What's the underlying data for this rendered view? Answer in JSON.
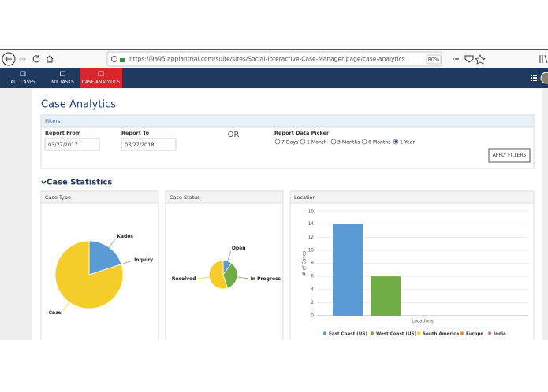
{
  "browser": {
    "url": "https://9a95.appiantrial.com/suite/sites/Social-Interactive-Case-Manager/page/case-analytics",
    "zoom": "80%"
  },
  "nav": {
    "tabs": [
      "ALL CASES",
      "MY TASKS",
      "CASE ANALYTICS"
    ],
    "active": 2
  },
  "page": {
    "title": "Case Analytics"
  },
  "filters": {
    "title": "Filters",
    "from_label": "Report From",
    "from_value": "03/27/2017",
    "to_label": "Report To",
    "to_value": "03/27/2018",
    "or": "OR",
    "picker_label": "Report Data Picker",
    "options": [
      "7 Days",
      "1 Month",
      "3 Months",
      "6 Months",
      "1 Year"
    ],
    "selected": 4,
    "button": "APPLY FILTERS"
  },
  "section": {
    "title": "Case Statistics"
  },
  "chart_data": [
    {
      "type": "pie",
      "title": "Case Type",
      "categories": [
        "Kados",
        "Inquiry",
        "Case"
      ],
      "values": [
        4,
        0,
        16
      ],
      "colors": [
        "#5b9bd5",
        "#70ad47",
        "#f5cd2a"
      ]
    },
    {
      "type": "pie",
      "title": "Case Status",
      "categories": [
        "Open",
        "In Progress",
        "Resolved"
      ],
      "values": [
        2,
        7,
        11
      ],
      "colors": [
        "#5b9bd5",
        "#70ad47",
        "#f5cd2a"
      ]
    },
    {
      "type": "bar",
      "title": "Location",
      "xlabel": "Locations",
      "ylabel": "# of Cases",
      "categories": [
        null
      ],
      "series": [
        {
          "name": "East Coast (US)",
          "color": "#5b9bd5",
          "values": [
            14
          ]
        },
        {
          "name": "West Coast (US)",
          "color": "#70ad47",
          "values": [
            6
          ]
        },
        {
          "name": "South America",
          "color": "#f5cd2a",
          "values": [
            0
          ]
        },
        {
          "name": "Europe",
          "color": "#e8902c",
          "values": [
            0
          ]
        },
        {
          "name": "India",
          "color": "#c77d9e",
          "values": [
            0
          ]
        }
      ],
      "ylim": [
        0,
        16
      ],
      "yticks": [
        0,
        2,
        4,
        6,
        8,
        10,
        12,
        14,
        16
      ],
      "grid": true
    }
  ]
}
